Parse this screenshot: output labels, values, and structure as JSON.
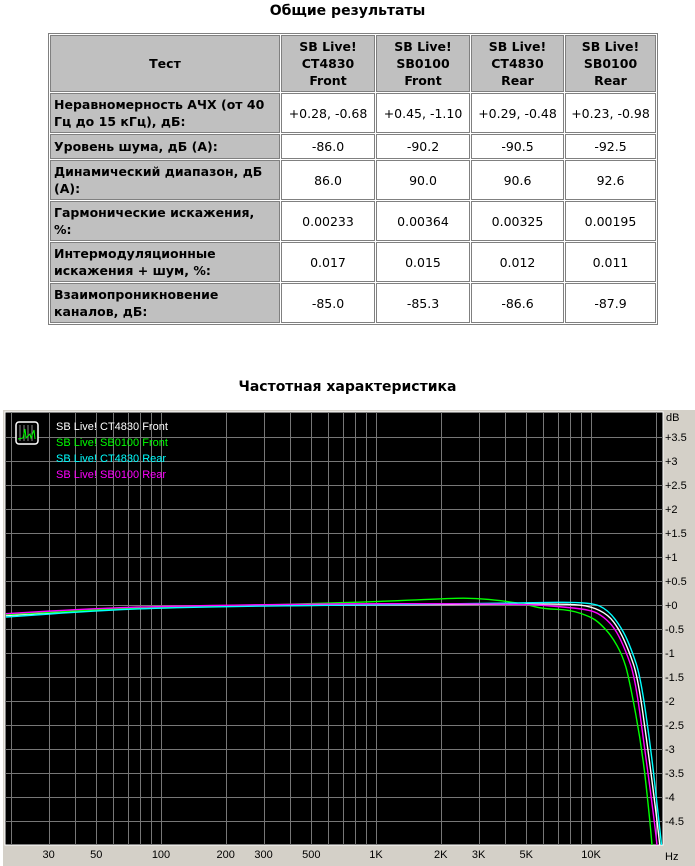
{
  "table": {
    "title": "Общие результаты",
    "headers": [
      "Тест",
      "SB Live! CT4830 Front",
      "SB Live! SB0100 Front",
      "SB Live! CT4830 Rear",
      "SB Live! SB0100 Rear"
    ],
    "rows": [
      {
        "label": "Неравномерность АЧХ (от 40 Гц до 15 кГц), дБ:",
        "values": [
          "+0.28, -0.68",
          "+0.45, -1.10",
          "+0.29, -0.48",
          "+0.23, -0.98"
        ]
      },
      {
        "label": "Уровень шума, дБ (А):",
        "values": [
          "-86.0",
          "-90.2",
          "-90.5",
          "-92.5"
        ]
      },
      {
        "label": "Динамический диапазон, дБ (А):",
        "values": [
          "86.0",
          "90.0",
          "90.6",
          "92.6"
        ]
      },
      {
        "label": "Гармонические искажения, %:",
        "values": [
          "0.00233",
          "0.00364",
          "0.00325",
          "0.00195"
        ]
      },
      {
        "label": "Интермодуляционные искажения + шум, %:",
        "values": [
          "0.017",
          "0.015",
          "0.012",
          "0.011"
        ]
      },
      {
        "label": "Взаимопроникновение каналов, дБ:",
        "values": [
          "-85.0",
          "-85.3",
          "-86.6",
          "-87.9"
        ]
      }
    ]
  },
  "chart_data": {
    "type": "line",
    "title": "Частотная характеристика",
    "xlabel": "Hz",
    "ylabel": "dB",
    "xscale": "log",
    "xlim": [
      19,
      22000
    ],
    "ylim": [
      -5,
      4
    ],
    "grid": true,
    "legend": "top-left",
    "background": "#000000",
    "x_ticks": [
      {
        "v": 30,
        "l": "30"
      },
      {
        "v": 50,
        "l": "50"
      },
      {
        "v": 100,
        "l": "100"
      },
      {
        "v": 200,
        "l": "200"
      },
      {
        "v": 300,
        "l": "300"
      },
      {
        "v": 500,
        "l": "500"
      },
      {
        "v": 1000,
        "l": "1K"
      },
      {
        "v": 2000,
        "l": "2K"
      },
      {
        "v": 3000,
        "l": "3K"
      },
      {
        "v": 5000,
        "l": "5K"
      },
      {
        "v": 10000,
        "l": "10K"
      }
    ],
    "y_ticks": [
      "+3.5",
      "+3",
      "+2.5",
      "+2",
      "+1.5",
      "+1",
      "+0.5",
      "+0",
      "-0.5",
      "-1",
      "-1.5",
      "-2",
      "-2.5",
      "-3",
      "-3.5",
      "-4",
      "-4.5"
    ],
    "series": [
      {
        "name": "SB Live! CT4830 Front",
        "color": "#ffffff",
        "points": [
          [
            19,
            -0.22
          ],
          [
            50,
            -0.1
          ],
          [
            100,
            -0.05
          ],
          [
            300,
            -0.01
          ],
          [
            1000,
            0
          ],
          [
            5000,
            0.02
          ],
          [
            8000,
            0.02
          ],
          [
            10000,
            -0.03
          ],
          [
            12000,
            -0.2
          ],
          [
            13500,
            -0.5
          ],
          [
            15000,
            -0.95
          ],
          [
            16500,
            -1.5
          ],
          [
            18400,
            -3
          ],
          [
            20300,
            -4.5
          ],
          [
            21000,
            -5.1
          ]
        ]
      },
      {
        "name": "SB Live! SB0100 Front",
        "color": "#00ff00",
        "points": [
          [
            19,
            -0.2
          ],
          [
            50,
            -0.1
          ],
          [
            100,
            -0.04
          ],
          [
            300,
            0
          ],
          [
            500,
            0.03
          ],
          [
            1000,
            0.07
          ],
          [
            2000,
            0.13
          ],
          [
            2800,
            0.15
          ],
          [
            4000,
            0.08
          ],
          [
            5000,
            0.01
          ],
          [
            6000,
            -0.08
          ],
          [
            8000,
            -0.1
          ],
          [
            10000,
            -0.25
          ],
          [
            11000,
            -0.38
          ],
          [
            12500,
            -0.65
          ],
          [
            14000,
            -1.05
          ],
          [
            15000,
            -1.5
          ],
          [
            17300,
            -3
          ],
          [
            18800,
            -4.5
          ],
          [
            19300,
            -5.1
          ]
        ]
      },
      {
        "name": "SB Live! CT4830 Rear",
        "color": "#00ffff",
        "points": [
          [
            19,
            -0.25
          ],
          [
            50,
            -0.12
          ],
          [
            100,
            -0.06
          ],
          [
            300,
            -0.02
          ],
          [
            1000,
            0
          ],
          [
            5000,
            0.05
          ],
          [
            10000,
            0.06
          ],
          [
            12000,
            -0.1
          ],
          [
            14000,
            -0.5
          ],
          [
            15500,
            -0.95
          ],
          [
            17000,
            -1.5
          ],
          [
            19000,
            -3
          ],
          [
            20700,
            -4.5
          ],
          [
            21400,
            -5.1
          ]
        ]
      },
      {
        "name": "SB Live! SB0100 Rear",
        "color": "#ff00ff",
        "points": [
          [
            19,
            -0.18
          ],
          [
            50,
            -0.07
          ],
          [
            100,
            -0.03
          ],
          [
            300,
            0.01
          ],
          [
            1000,
            0.03
          ],
          [
            5000,
            0.02
          ],
          [
            7000,
            -0.03
          ],
          [
            10000,
            -0.1
          ],
          [
            11500,
            -0.25
          ],
          [
            13000,
            -0.5
          ],
          [
            14500,
            -0.95
          ],
          [
            16000,
            -1.5
          ],
          [
            17800,
            -3
          ],
          [
            19700,
            -4.5
          ],
          [
            20400,
            -5.1
          ]
        ]
      }
    ]
  }
}
